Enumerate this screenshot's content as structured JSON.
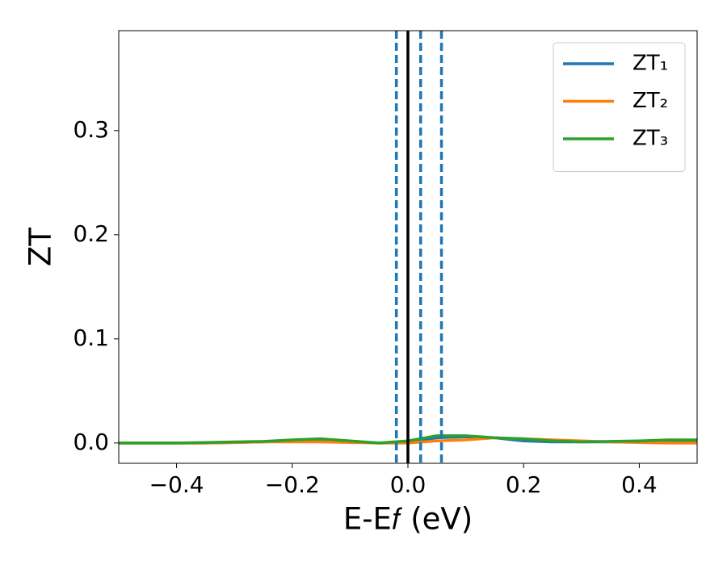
{
  "chart_data": {
    "type": "line",
    "xlabel": "E-E𝑓 (eV)",
    "ylabel": "ZT",
    "x": [
      -0.5,
      -0.45,
      -0.4,
      -0.35,
      -0.3,
      -0.25,
      -0.2,
      -0.15,
      -0.1,
      -0.05,
      0,
      0.05,
      0.1,
      0.15,
      0.2,
      0.25,
      0.3,
      0.35,
      0.4,
      0.45,
      0.5
    ],
    "series": [
      {
        "name": "ZT₁",
        "color": "#1f77b4",
        "values": [
          0,
          0,
          0,
          0,
          0.0005,
          0.001,
          0.002,
          0.003,
          0.001,
          0,
          0.001,
          0.005,
          0.006,
          0.005,
          0.002,
          0.001,
          0.001,
          0.001,
          0.001,
          0.002,
          0.002
        ]
      },
      {
        "name": "ZT₂",
        "color": "#ff7f0e",
        "values": [
          0,
          0,
          0,
          0,
          0.0005,
          0.001,
          0.001,
          0.001,
          0.0005,
          0,
          0,
          0.002,
          0.003,
          0.005,
          0.004,
          0.003,
          0.002,
          0.001,
          0.0005,
          0,
          0
        ]
      },
      {
        "name": "ZT₃",
        "color": "#2ca02c",
        "values": [
          0,
          0,
          0,
          0.0005,
          0.001,
          0.0015,
          0.003,
          0.004,
          0.002,
          0,
          0.002,
          0.007,
          0.007,
          0.005,
          0.004,
          0.002,
          0.001,
          0.0015,
          0.002,
          0.003,
          0.003
        ]
      }
    ],
    "vlines": [
      {
        "x": 0,
        "color": "#000000",
        "style": "solid"
      },
      {
        "x": -0.02,
        "color": "#1f77b4",
        "style": "dashed"
      },
      {
        "x": 0.022,
        "color": "#1f77b4",
        "style": "dashed"
      },
      {
        "x": 0.058,
        "color": "#1f77b4",
        "style": "dashed"
      }
    ],
    "xlim": [
      -0.5,
      0.5
    ],
    "ylim": [
      -0.0195,
      0.396
    ],
    "xticks": [
      {
        "value": -0.4,
        "label": "−0.4"
      },
      {
        "value": -0.2,
        "label": "−0.2"
      },
      {
        "value": 0,
        "label": "0.0"
      },
      0.2,
      0.4
    ],
    "yticks": [
      {
        "value": 0,
        "label": "0.0"
      },
      0.1,
      0.2,
      0.3
    ],
    "legend": "upper right",
    "grid": false
  }
}
